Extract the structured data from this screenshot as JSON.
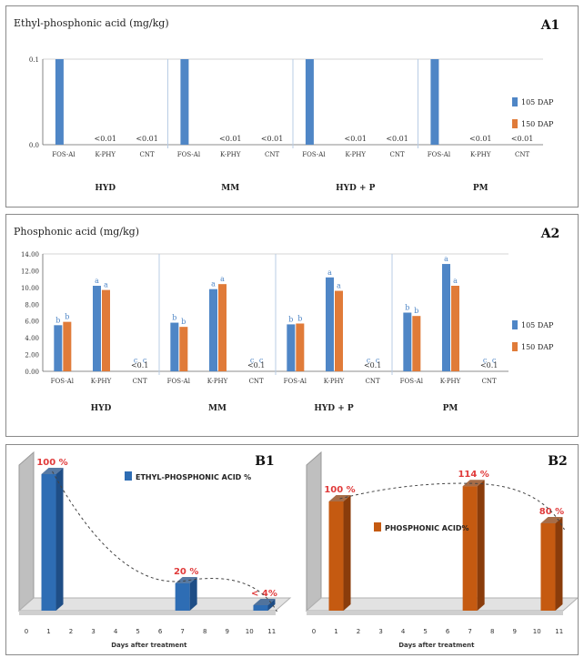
{
  "colors": {
    "blue": "#4f86c6",
    "orange": "#e07b39",
    "letter": "#4f86c6",
    "pct_label": "#e03a3a",
    "b1_bar": "#2e6db4",
    "b2_bar": "#c55a11",
    "grid": "#c8c8c8",
    "divider": "#b8cce4"
  },
  "chart_data": [
    {
      "id": "A1",
      "type": "bar",
      "panel_label": "A1",
      "title": "Ethyl-phosphonic acid (mg/kg)",
      "yticks": [
        "0.0",
        "0.1"
      ],
      "ylim": [
        0,
        0.1
      ],
      "categories": [
        "FOS-Al",
        "K-PHY",
        "CNT"
      ],
      "groups": [
        "HYD",
        "MM",
        "HYD + P",
        "PM"
      ],
      "series": [
        {
          "name": "105 DAP",
          "values": [
            [
              0.1,
              0,
              0
            ],
            [
              0.1,
              0,
              0
            ],
            [
              0.1,
              0,
              0
            ],
            [
              0.1,
              0,
              0
            ]
          ]
        },
        {
          "name": "150 DAP",
          "values": [
            [
              0,
              0,
              0
            ],
            [
              0,
              0,
              0
            ],
            [
              0,
              0,
              0
            ],
            [
              0,
              0,
              0
            ]
          ]
        }
      ],
      "annotations": [
        {
          "group": 0,
          "cat": 1,
          "text": "<0.01"
        },
        {
          "group": 0,
          "cat": 2,
          "text": "<0.01"
        },
        {
          "group": 1,
          "cat": 1,
          "text": "<0.01"
        },
        {
          "group": 1,
          "cat": 2,
          "text": "<0.01"
        },
        {
          "group": 2,
          "cat": 1,
          "text": "<0.01"
        },
        {
          "group": 2,
          "cat": 2,
          "text": "<0.01"
        },
        {
          "group": 3,
          "cat": 1,
          "text": "<0.01"
        },
        {
          "group": 3,
          "cat": 2,
          "text": "<0.01"
        }
      ],
      "legend": [
        "105 DAP",
        "150 DAP"
      ],
      "legend_position": "right"
    },
    {
      "id": "A2",
      "type": "bar",
      "panel_label": "A2",
      "title": "Phosphonic acid (mg/kg)",
      "yticks": [
        "0.00",
        "2.00",
        "4.00",
        "6.00",
        "8.00",
        "10.00",
        "12.00",
        "14.00"
      ],
      "ylim": [
        0,
        14
      ],
      "categories": [
        "FOS-Al",
        "K-PHY",
        "CNT"
      ],
      "groups": [
        "HYD",
        "MM",
        "HYD + P",
        "PM"
      ],
      "series": [
        {
          "name": "105 DAP",
          "values": [
            [
              5.5,
              10.2,
              0
            ],
            [
              5.8,
              9.8,
              0
            ],
            [
              5.6,
              11.2,
              0
            ],
            [
              7.0,
              12.8,
              0
            ]
          ]
        },
        {
          "name": "150 DAP",
          "values": [
            [
              5.9,
              9.7,
              0
            ],
            [
              5.3,
              10.4,
              0
            ],
            [
              5.7,
              9.6,
              0
            ],
            [
              6.6,
              10.2,
              0
            ]
          ]
        }
      ],
      "letters": [
        [
          [
            "b",
            "b"
          ],
          [
            "a",
            "a"
          ],
          [
            "c",
            "c"
          ]
        ],
        [
          [
            "b",
            "b"
          ],
          [
            "a",
            "a"
          ],
          [
            "c",
            "c"
          ]
        ],
        [
          [
            "b",
            "b"
          ],
          [
            "a",
            "a"
          ],
          [
            "c",
            "c"
          ]
        ],
        [
          [
            "b",
            "b"
          ],
          [
            "a",
            "a"
          ],
          [
            "c",
            "c"
          ]
        ]
      ],
      "annotations": [
        {
          "group": 0,
          "cat": 2,
          "text": "<0.1"
        },
        {
          "group": 1,
          "cat": 2,
          "text": "<0.1"
        },
        {
          "group": 2,
          "cat": 2,
          "text": "<0.1"
        },
        {
          "group": 3,
          "cat": 2,
          "text": "<0.1"
        }
      ],
      "legend": [
        "105 DAP",
        "150 DAP"
      ],
      "legend_position": "right"
    },
    {
      "id": "B1",
      "type": "bar",
      "panel_label": "B1",
      "series_name": "ETHYL-PHOSPHONIC ACID %",
      "xticks": [
        "0",
        "1",
        "2",
        "3",
        "4",
        "5",
        "6",
        "7",
        "8",
        "9",
        "10",
        "11"
      ],
      "xlabel": "Days after treatment",
      "x": [
        1,
        7,
        10.5
      ],
      "values": [
        100,
        20,
        4
      ],
      "labels": [
        "100 %",
        "20 %",
        "< 4%"
      ],
      "trendline": "dashed"
    },
    {
      "id": "B2",
      "type": "bar",
      "panel_label": "B2",
      "series_name": "PHOSPHONIC ACID%",
      "xticks": [
        "0",
        "1",
        "2",
        "3",
        "4",
        "5",
        "6",
        "7",
        "8",
        "9",
        "10",
        "11"
      ],
      "xlabel": "Days after treatment",
      "x": [
        1,
        7,
        10.5
      ],
      "values": [
        100,
        114,
        80
      ],
      "labels": [
        "100 %",
        "114 %",
        "80 %"
      ],
      "trendline": "dashed"
    }
  ]
}
